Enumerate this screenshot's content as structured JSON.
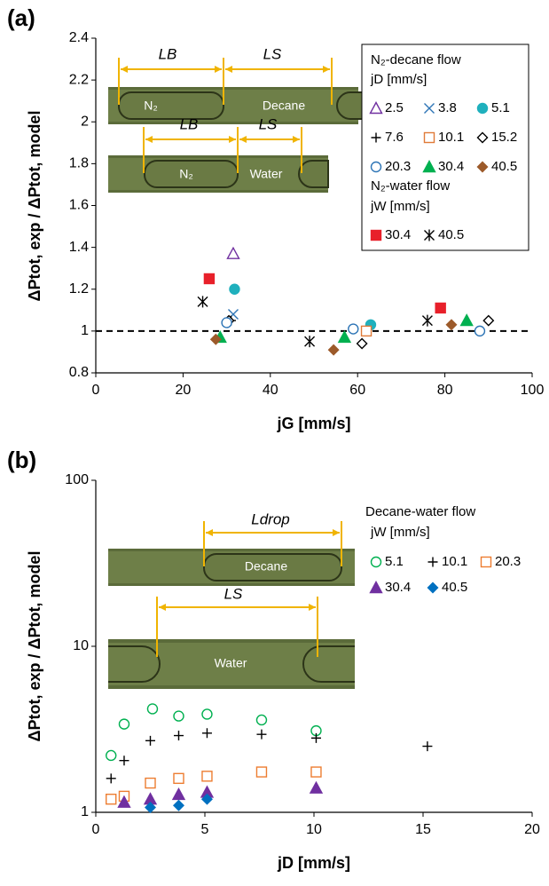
{
  "chart_data": [
    {
      "type": "scatter",
      "panel_label": "(a)",
      "x_label": "jG [mm/s]",
      "y_label": "ΔPtot, exp / ΔPtot, model",
      "xlim": [
        0,
        100
      ],
      "xticks": [
        0,
        20,
        40,
        60,
        80,
        100
      ],
      "ylim": [
        0.8,
        2.4
      ],
      "yticks": [
        0.8,
        1,
        1.2,
        1.4,
        1.6,
        1.8,
        2,
        2.2,
        2.4
      ],
      "log_scale": false,
      "hline": 1,
      "legend_titles": [
        "N₂-decane flow",
        "jD [mm/s]",
        "N₂-water flow",
        "jW [mm/s]"
      ],
      "annotations": [
        "LB",
        "LS",
        "N₂",
        "Decane",
        "LB",
        "LS",
        "N₂",
        "Water"
      ],
      "series": [
        {
          "name": "2.5",
          "color": "#7030a0",
          "marker": "triangle-open",
          "x": [
            31.5
          ],
          "values": [
            1.37
          ]
        },
        {
          "name": "3.8",
          "color": "#2e75b6",
          "marker": "x",
          "x": [
            31.5
          ],
          "values": [
            1.08
          ]
        },
        {
          "name": "5.1",
          "color": "#1fb0bd",
          "marker": "circle-filled",
          "x": [
            31.8,
            63
          ],
          "values": [
            1.2,
            1.03
          ]
        },
        {
          "name": "7.6",
          "color": "#000000",
          "marker": "plus",
          "x": [
            31
          ],
          "values": [
            1.05
          ]
        },
        {
          "name": "10.1",
          "color": "#e07b39",
          "marker": "square-open",
          "x": [
            62
          ],
          "values": [
            1.0
          ]
        },
        {
          "name": "15.2",
          "color": "#000000",
          "marker": "diamond-open",
          "x": [
            30.5,
            61,
            90
          ],
          "values": [
            1.05,
            0.94,
            1.05
          ]
        },
        {
          "name": "20.3",
          "color": "#2e75b6",
          "marker": "circle-open",
          "x": [
            30,
            59,
            88
          ],
          "values": [
            1.04,
            1.01,
            1.0
          ]
        },
        {
          "name": "30.4",
          "color": "#00b050",
          "marker": "triangle-filled",
          "x": [
            28.5,
            57,
            85
          ],
          "values": [
            0.97,
            0.97,
            1.05
          ]
        },
        {
          "name": "40.5",
          "color": "#9c5a2a",
          "marker": "diamond-filled",
          "x": [
            27.5,
            54.5,
            81.5
          ],
          "values": [
            0.96,
            0.91,
            1.03
          ]
        },
        {
          "name": "30.4",
          "color": "#e8202a",
          "marker": "square-filled",
          "x": [
            26,
            79
          ],
          "values": [
            1.25,
            1.11
          ]
        },
        {
          "name": "40.5",
          "color": "#000000",
          "marker": "asterisk",
          "x": [
            24.5,
            49,
            76
          ],
          "values": [
            1.14,
            0.95,
            1.05
          ]
        }
      ]
    },
    {
      "type": "scatter",
      "panel_label": "(b)",
      "x_label": "jD [mm/s]",
      "y_label": "ΔPtot, exp / ΔPtot, model",
      "xlim": [
        0,
        20
      ],
      "xticks": [
        0,
        5,
        10,
        15,
        20
      ],
      "ylim": [
        1,
        100
      ],
      "yticks": [
        1,
        10,
        100
      ],
      "log_scale": true,
      "legend_titles": [
        "Decane-water flow",
        "jW [mm/s]"
      ],
      "annotations": [
        "Ldrop",
        "Decane",
        "LS",
        "Water"
      ],
      "series": [
        {
          "name": "5.1",
          "color": "#00b050",
          "marker": "circle-open",
          "x": [
            0.7,
            1.3,
            2.6,
            3.8,
            5.1,
            7.6,
            10.1
          ],
          "values": [
            2.2,
            3.4,
            4.2,
            3.8,
            3.9,
            3.6,
            3.1
          ]
        },
        {
          "name": "10.1",
          "color": "#000000",
          "marker": "plus",
          "x": [
            0.7,
            1.3,
            2.5,
            3.8,
            5.1,
            7.6,
            10.1,
            15.2
          ],
          "values": [
            1.6,
            2.05,
            2.7,
            2.9,
            3.0,
            2.95,
            2.8,
            2.5
          ]
        },
        {
          "name": "20.3",
          "color": "#ed7d31",
          "marker": "square-open",
          "x": [
            0.7,
            1.3,
            2.5,
            3.8,
            5.1,
            7.6,
            10.1
          ],
          "values": [
            1.2,
            1.25,
            1.5,
            1.6,
            1.65,
            1.75,
            1.75
          ]
        },
        {
          "name": "30.4",
          "color": "#7030a0",
          "marker": "triangle-filled",
          "x": [
            1.3,
            2.5,
            3.8,
            5.1,
            10.1
          ],
          "values": [
            1.15,
            1.2,
            1.28,
            1.32,
            1.4
          ]
        },
        {
          "name": "40.5",
          "color": "#0070c0",
          "marker": "diamond-filled",
          "x": [
            2.5,
            3.8,
            5.1
          ],
          "values": [
            1.07,
            1.1,
            1.2
          ]
        }
      ]
    }
  ]
}
